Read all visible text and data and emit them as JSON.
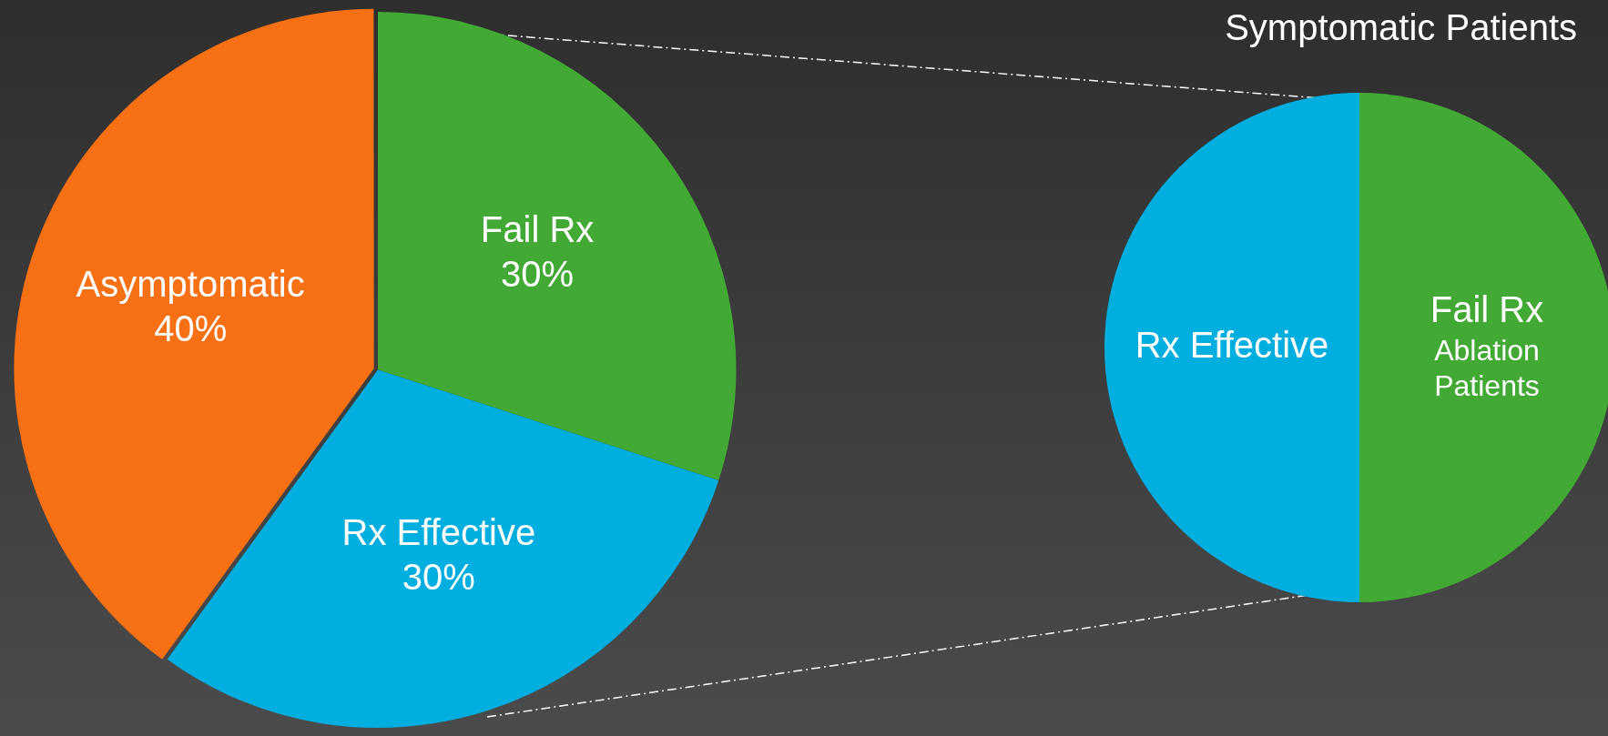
{
  "chart_data": [
    {
      "type": "pie",
      "categories": [
        "Fail Rx",
        "Rx Effective",
        "Asymptomatic"
      ],
      "values": [
        30,
        30,
        40
      ],
      "value_labels": [
        "30%",
        "30%",
        "40%"
      ],
      "colors": [
        "#43a935",
        "#00aee0",
        "#f77014"
      ],
      "legend": false
    },
    {
      "type": "pie",
      "title": "Symptomatic Patients",
      "categories": [
        "Fail Rx\nAblation\nPatients",
        "Rx Effective"
      ],
      "values": [
        50,
        50
      ],
      "colors": [
        "#43a935",
        "#00aee0"
      ],
      "legend": false
    }
  ]
}
